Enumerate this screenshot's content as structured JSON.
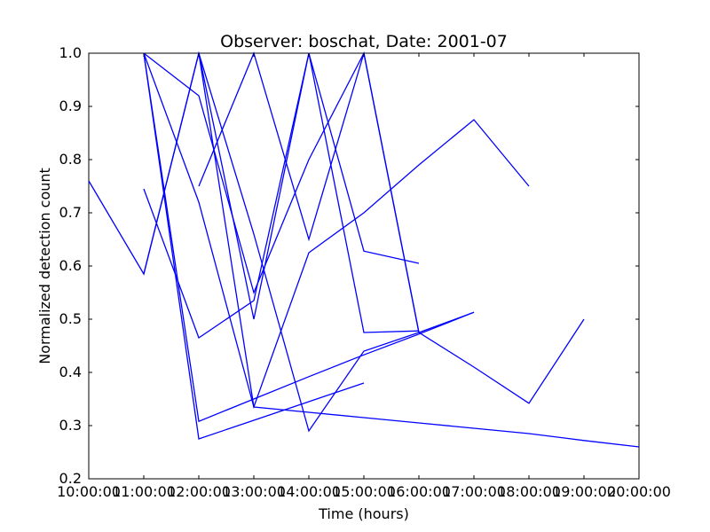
{
  "chart_data": {
    "type": "line",
    "title": "Observer: boschat, Date: 2001-07",
    "xlabel": "Time (hours)",
    "ylabel": "Normalized detection count",
    "xlim": [
      "10:00:00",
      "20:00:00"
    ],
    "ylim": [
      0.2,
      1.0
    ],
    "x_ticks": [
      "10:00:00",
      "11:00:00",
      "12:00:00",
      "13:00:00",
      "14:00:00",
      "15:00:00",
      "16:00:00",
      "17:00:00",
      "18:00:00",
      "19:00:00",
      "20:00:00"
    ],
    "y_ticks": [
      "0.2",
      "0.3",
      "0.4",
      "0.5",
      "0.6",
      "0.7",
      "0.8",
      "0.9",
      "1.0"
    ],
    "grid": false,
    "color": "#0000ff",
    "series": [
      {
        "x": [
          "10:00:00",
          "11:00:00",
          "12:00:00",
          "13:00:00",
          "14:00:00",
          "15:00:00",
          "16:00:00"
        ],
        "values": [
          0.76,
          0.585,
          1.0,
          0.5,
          1.0,
          0.628,
          0.605
        ]
      },
      {
        "x": [
          "11:00:00",
          "12:00:00",
          "13:00:00",
          "14:00:00",
          "15:00:00",
          "16:00:00"
        ],
        "values": [
          0.745,
          0.465,
          0.535,
          1.0,
          0.475,
          0.478
        ]
      },
      {
        "x": [
          "11:00:00",
          "12:00:00",
          "13:00:00",
          "14:00:00",
          "15:00:00",
          "16:00:00"
        ],
        "values": [
          1.0,
          0.92,
          0.55,
          0.8,
          1.0,
          0.475
        ]
      },
      {
        "x": [
          "11:00:00",
          "12:00:00",
          "13:00:00",
          "14:00:00",
          "15:00:00",
          "16:00:00",
          "17:00:00",
          "18:00:00"
        ],
        "values": [
          1.0,
          0.72,
          0.335,
          0.625,
          0.7,
          0.79,
          0.875,
          0.75
        ]
      },
      {
        "x": [
          "11:00:00",
          "12:00:00",
          "13:00:00",
          "14:00:00",
          "15:00:00"
        ],
        "values": [
          1.0,
          0.275,
          0.31,
          0.345,
          0.38
        ]
      },
      {
        "x": [
          "11:00:00",
          "12:00:00",
          "13:00:00",
          "14:00:00",
          "15:00:00",
          "16:00:00",
          "17:00:00"
        ],
        "values": [
          0.585,
          1.0,
          0.66,
          0.29,
          0.44,
          0.475,
          0.513
        ]
      },
      {
        "x": [
          "11:00:00",
          "12:00:00",
          "13:00:00",
          "14:00:00",
          "15:00:00",
          "16:00:00",
          "17:00:00"
        ],
        "values": [
          1.0,
          0.308,
          0.35,
          0.392,
          0.433,
          0.472,
          0.513
        ]
      },
      {
        "x": [
          "12:00:00",
          "13:00:00",
          "14:00:00",
          "15:00:00",
          "16:00:00",
          "17:00:00",
          "18:00:00",
          "19:00:00"
        ],
        "values": [
          0.75,
          1.0,
          0.65,
          1.0,
          0.475,
          0.41,
          0.342,
          0.5
        ]
      },
      {
        "x": [
          "12:00:00",
          "13:00:00",
          "14:00:00",
          "15:00:00",
          "16:00:00",
          "17:00:00",
          "18:00:00",
          "19:00:00",
          "20:00:00"
        ],
        "values": [
          1.0,
          0.335,
          0.325,
          0.315,
          0.305,
          0.295,
          0.285,
          0.272,
          0.26
        ]
      }
    ]
  }
}
